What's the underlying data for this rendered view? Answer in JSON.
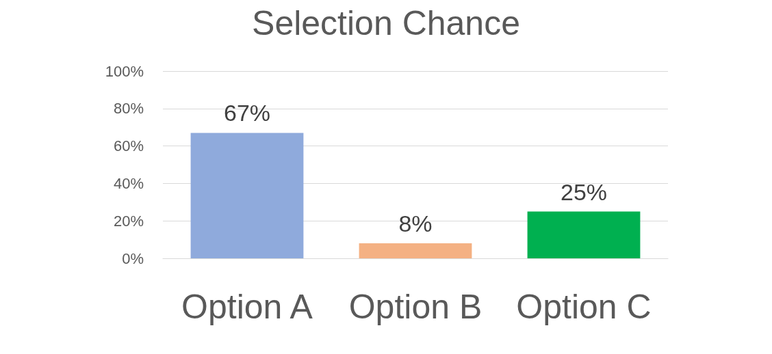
{
  "chart_data": {
    "type": "bar",
    "title": "Selection Chance",
    "categories": [
      "Option A",
      "Option B",
      "Option C"
    ],
    "values": [
      67,
      8,
      25
    ],
    "value_labels": [
      "67%",
      "8%",
      "25%"
    ],
    "colors": [
      "#8faadc",
      "#f4b183",
      "#00b050"
    ],
    "ylim": [
      0,
      100
    ],
    "yticks": [
      {
        "value": 0,
        "label": "0%"
      },
      {
        "value": 20,
        "label": "20%"
      },
      {
        "value": 40,
        "label": "40%"
      },
      {
        "value": 60,
        "label": "60%"
      },
      {
        "value": 80,
        "label": "80%"
      },
      {
        "value": 100,
        "label": "100%"
      }
    ],
    "grid": "y"
  }
}
